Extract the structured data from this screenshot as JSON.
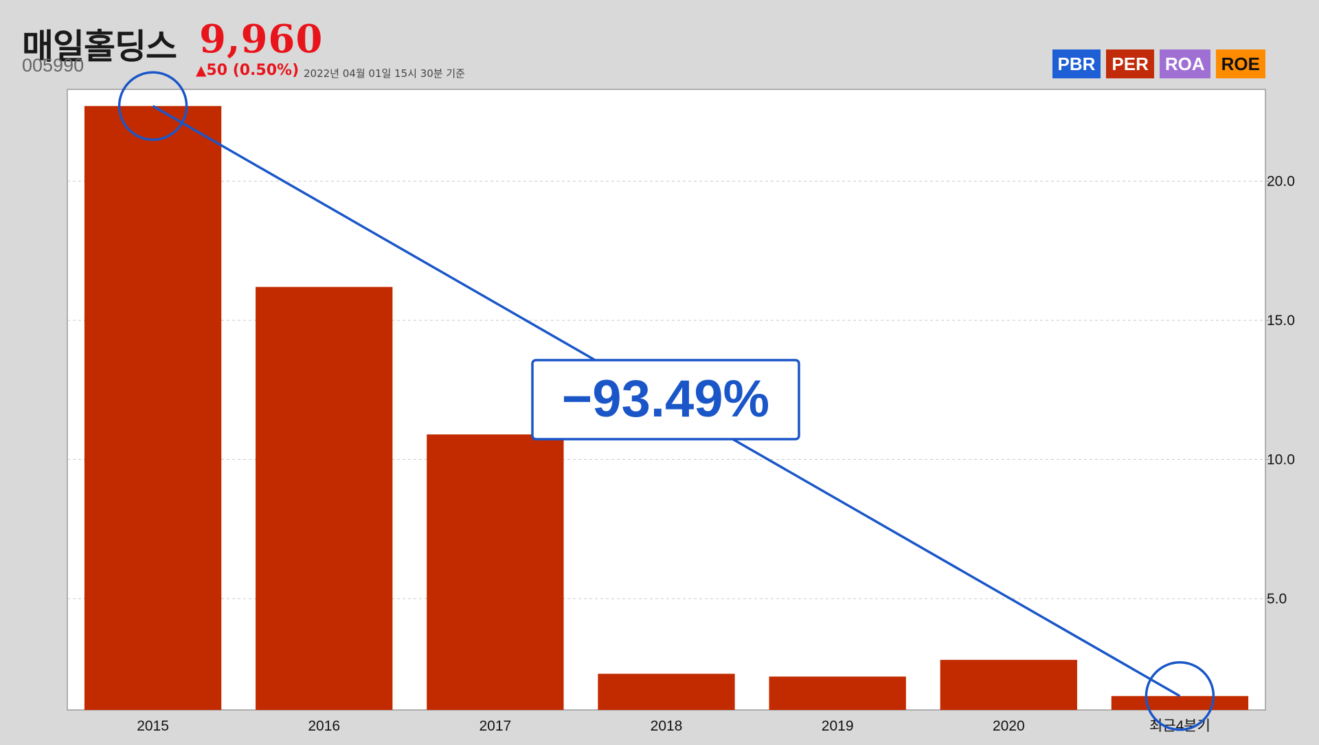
{
  "header": {
    "company_name": "매일홀딩스",
    "price": "9,960",
    "stock_code": "005990",
    "change_arrow": "▲",
    "change_value": "50",
    "change_percent": "(0.50%)",
    "as_of": "2022년 04월 01일 15시 30분 기준"
  },
  "legend": [
    {
      "label": "PBR",
      "bg": "#1f5fd6",
      "fg": "#ffffff"
    },
    {
      "label": "PER",
      "bg": "#c22b0a",
      "fg": "#ffffff"
    },
    {
      "label": "ROA",
      "bg": "#a06fd4",
      "fg": "#ffffff"
    },
    {
      "label": "ROE",
      "bg": "#ff8c00",
      "fg": "#111111"
    }
  ],
  "annotation": {
    "change_label": "−93.49%",
    "color": "#1a56c8",
    "from_category": "2015",
    "to_category": "최근4분기"
  },
  "chart_data": {
    "type": "bar",
    "title": "",
    "xlabel": "",
    "ylabel": "",
    "categories": [
      "2015",
      "2016",
      "2017",
      "2018",
      "2019",
      "2020",
      "최근4분기"
    ],
    "values": [
      22.7,
      16.2,
      10.9,
      2.3,
      2.2,
      2.8,
      1.5
    ],
    "ylim": [
      1.0,
      23.3
    ],
    "y_ticks": [
      5.0,
      10.0,
      15.0,
      20.0
    ],
    "y_tick_labels": [
      "5.0",
      "10.0",
      "15.0",
      "20.0"
    ],
    "y_axis_side": "right",
    "grid": "horizontal-dashed",
    "bar_color": "#c22b00"
  }
}
